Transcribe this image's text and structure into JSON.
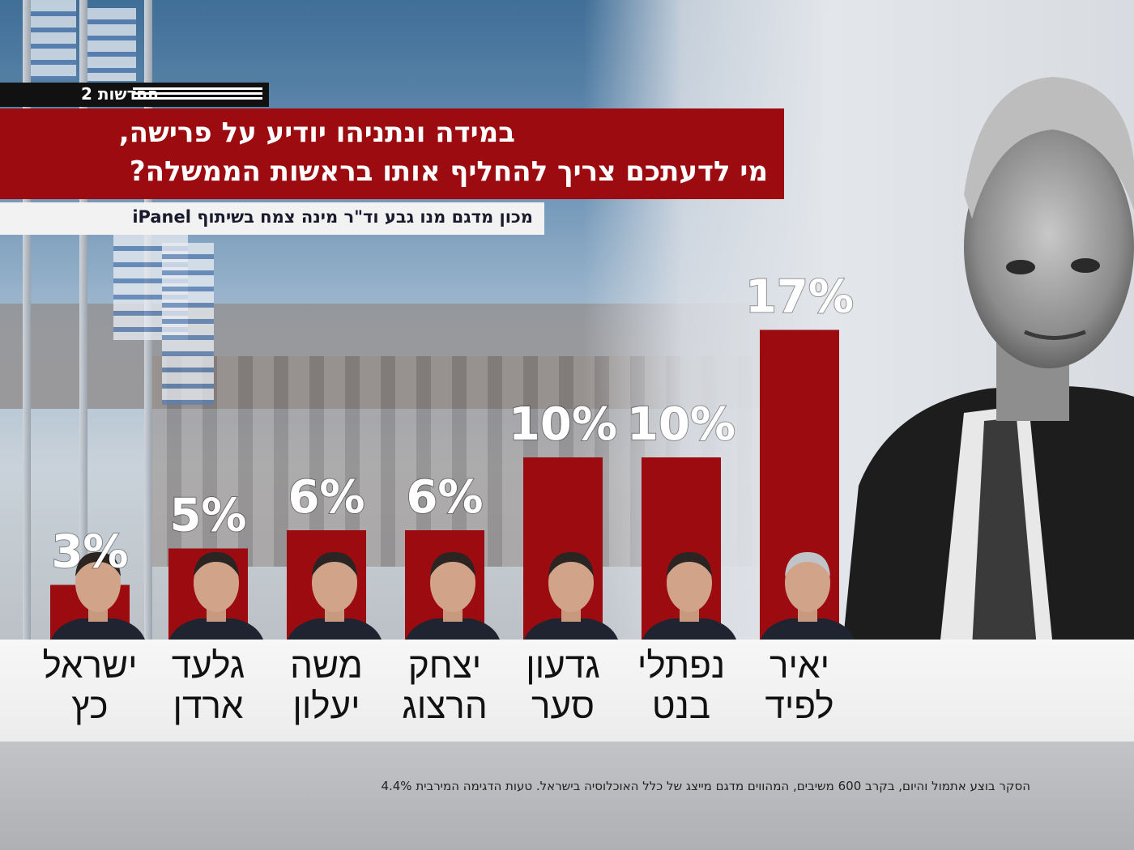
{
  "header": {
    "channel_name": "החדשות 2",
    "title_line1": "במידה ונתניהו יודיע על פרישה,",
    "title_line2": "מי לדעתכם צריך להחליף אותו בראשות הממשלה?",
    "credit": "מכון מדגם מנו גבע וד\"ר מינה צמח בשיתוף iPanel"
  },
  "chart_data": {
    "type": "bar",
    "categories": [
      "ישראל כץ",
      "גלעד ארדן",
      "משה יעלון",
      "יצחק הרצוג",
      "גדעון סער",
      "נפתלי בנט",
      "יאיר לפיד"
    ],
    "label_lines": [
      [
        "ישראל",
        "כץ"
      ],
      [
        "גלעד",
        "ארדן"
      ],
      [
        "משה",
        "יעלון"
      ],
      [
        "יצחק",
        "הרצוג"
      ],
      [
        "גדעון",
        "סער"
      ],
      [
        "נפתלי",
        "בנט"
      ],
      [
        "יאיר",
        "לפיד"
      ]
    ],
    "values": [
      3,
      5,
      6,
      6,
      10,
      10,
      17
    ],
    "value_labels": [
      "3%",
      "5%",
      "6%",
      "6%",
      "10%",
      "10%",
      "17%"
    ],
    "unit": "%",
    "ylim": [
      0,
      20
    ],
    "bar_color": "#9b0b10",
    "grid": false,
    "legend": "none"
  },
  "footnote": "הסקר בוצע אתמול והיום, בקרב 600 משיבים, המהווים מדגם מייצג של כלל האוכלוסיה בישראל. טעות הדגימה המירבית 4.4%",
  "colors": {
    "accent_red": "#9b0b10",
    "label_strip": "#f2f2f2",
    "text_white": "#ffffff"
  },
  "icons": {
    "portrait": "netanyahu-portrait-icon",
    "logo": "dahaf-logo-icon"
  }
}
